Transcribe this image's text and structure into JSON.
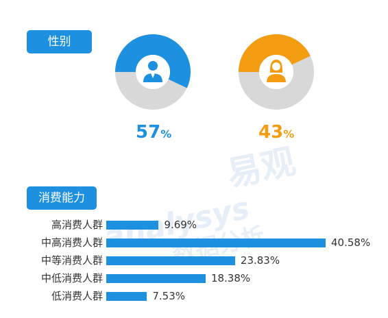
{
  "gender": {
    "tag": "性别",
    "male": {
      "value": 57,
      "number": "57",
      "symbol": "%",
      "color": "#1e90e0"
    },
    "female": {
      "value": 43,
      "number": "43",
      "symbol": "%",
      "color": "#f39c12"
    },
    "track_color": "#d8d8d8"
  },
  "spending": {
    "tag": "消费能力"
  },
  "watermark": {
    "brand": "易观",
    "en": "analysys",
    "sub": "数据分析"
  },
  "chart_data": [
    {
      "type": "pie",
      "categories": [
        "男",
        "女"
      ],
      "values": [
        57,
        43
      ]
    },
    {
      "type": "bar",
      "orientation": "horizontal",
      "categories": [
        "高消费人群",
        "中高消费人群",
        "中等消费人群",
        "中低消费人群",
        "低消费人群"
      ],
      "values": [
        9.69,
        40.58,
        23.83,
        18.38,
        7.53
      ],
      "labels": [
        "9.69%",
        "40.58%",
        "23.83%",
        "18.38%",
        "7.53%"
      ],
      "xlim": [
        0,
        40.58
      ],
      "color": "#1e90e0"
    }
  ]
}
